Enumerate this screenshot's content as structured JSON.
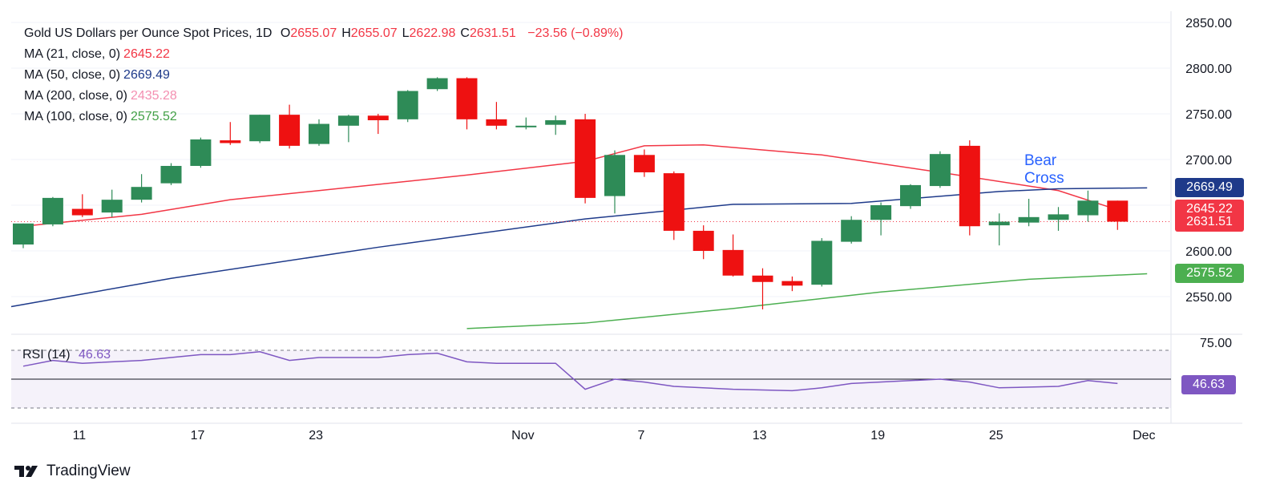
{
  "header": {
    "symbol_text": "Gold US Dollars per Ounce Spot Prices, 1D",
    "ohlc": [
      {
        "key": "O",
        "value": "2655.07"
      },
      {
        "key": "H",
        "value": "2655.07"
      },
      {
        "key": "L",
        "value": "2622.98"
      },
      {
        "key": "C",
        "value": "2631.51"
      }
    ],
    "change": "−23.56 (−0.89%)"
  },
  "indicators": [
    {
      "label": "MA (21, close, 0)",
      "value": "2645.22",
      "color": "#f23645"
    },
    {
      "label": "MA (50, close, 0)",
      "value": "2669.49",
      "color": "#1e3a8a"
    },
    {
      "label": "MA (200, close, 0)",
      "value": "2435.28",
      "color": "#f48fb1"
    },
    {
      "label": "MA (100, close, 0)",
      "value": "2575.52",
      "color": "#43a047"
    }
  ],
  "annotation": {
    "line1": "Bear",
    "line2": "Cross"
  },
  "price_badges": [
    {
      "value": "2669.49",
      "color": "#1e3a8a"
    },
    {
      "value": "2645.22",
      "color": "#f23645"
    },
    {
      "value": "2631.51",
      "color": "#f23645"
    },
    {
      "value": "2575.52",
      "color": "#4caf50"
    }
  ],
  "rsi": {
    "label": "RSI (14)",
    "value": "46.63",
    "badge": "46.63",
    "color": "#7e57c2"
  },
  "footer": {
    "brand": "TradingView"
  },
  "chart_data": {
    "type": "candlestick",
    "y_axis": {
      "ticks": [
        "2850.00",
        "2800.00",
        "2750.00",
        "2700.00",
        "2650.00",
        "2600.00",
        "2550.00"
      ],
      "ylim": [
        2515,
        2860
      ]
    },
    "x_axis": {
      "ticks": [
        "11",
        "17",
        "23",
        "Nov",
        "7",
        "13",
        "19",
        "25",
        "Dec"
      ]
    },
    "rsi_axis": {
      "ticks": [
        "75.00"
      ],
      "ylim": [
        20,
        80
      ],
      "band": [
        30,
        70
      ],
      "mid": 50
    },
    "candles": [
      {
        "o": 2607,
        "h": 2630,
        "l": 2603,
        "c": 2630
      },
      {
        "o": 2629,
        "h": 2659,
        "l": 2627,
        "c": 2658
      },
      {
        "o": 2646,
        "h": 2662,
        "l": 2637,
        "c": 2639
      },
      {
        "o": 2642,
        "h": 2667,
        "l": 2637,
        "c": 2656
      },
      {
        "o": 2656,
        "h": 2684,
        "l": 2653,
        "c": 2670
      },
      {
        "o": 2674,
        "h": 2696,
        "l": 2672,
        "c": 2693
      },
      {
        "o": 2693,
        "h": 2724,
        "l": 2691,
        "c": 2722
      },
      {
        "o": 2721,
        "h": 2741,
        "l": 2716,
        "c": 2718
      },
      {
        "o": 2720,
        "h": 2749,
        "l": 2718,
        "c": 2749
      },
      {
        "o": 2749,
        "h": 2760,
        "l": 2712,
        "c": 2715
      },
      {
        "o": 2717,
        "h": 2744,
        "l": 2715,
        "c": 2739
      },
      {
        "o": 2737,
        "h": 2749,
        "l": 2719,
        "c": 2748
      },
      {
        "o": 2748,
        "h": 2750,
        "l": 2728,
        "c": 2743
      },
      {
        "o": 2744,
        "h": 2776,
        "l": 2741,
        "c": 2775
      },
      {
        "o": 2777,
        "h": 2790,
        "l": 2775,
        "c": 2789
      },
      {
        "o": 2789,
        "h": 2790,
        "l": 2733,
        "c": 2744
      },
      {
        "o": 2744,
        "h": 2763,
        "l": 2733,
        "c": 2737
      },
      {
        "o": 2736,
        "h": 2746,
        "l": 2733,
        "c": 2737
      },
      {
        "o": 2738,
        "h": 2748,
        "l": 2727,
        "c": 2743
      },
      {
        "o": 2744,
        "h": 2750,
        "l": 2652,
        "c": 2658
      },
      {
        "o": 2660,
        "h": 2710,
        "l": 2641,
        "c": 2705
      },
      {
        "o": 2705,
        "h": 2711,
        "l": 2681,
        "c": 2686
      },
      {
        "o": 2685,
        "h": 2687,
        "l": 2612,
        "c": 2622
      },
      {
        "o": 2622,
        "h": 2628,
        "l": 2591,
        "c": 2600
      },
      {
        "o": 2601,
        "h": 2618,
        "l": 2572,
        "c": 2573
      },
      {
        "o": 2573,
        "h": 2581,
        "l": 2536,
        "c": 2566
      },
      {
        "o": 2567,
        "h": 2572,
        "l": 2556,
        "c": 2562
      },
      {
        "o": 2563,
        "h": 2614,
        "l": 2561,
        "c": 2611
      },
      {
        "o": 2610,
        "h": 2638,
        "l": 2608,
        "c": 2634
      },
      {
        "o": 2634,
        "h": 2653,
        "l": 2617,
        "c": 2650
      },
      {
        "o": 2649,
        "h": 2673,
        "l": 2646,
        "c": 2672
      },
      {
        "o": 2671,
        "h": 2709,
        "l": 2669,
        "c": 2706
      },
      {
        "o": 2715,
        "h": 2721,
        "l": 2617,
        "c": 2627
      },
      {
        "o": 2628,
        "h": 2641,
        "l": 2606,
        "c": 2632
      },
      {
        "o": 2631,
        "h": 2657,
        "l": 2627,
        "c": 2637
      },
      {
        "o": 2634,
        "h": 2648,
        "l": 2622,
        "c": 2640
      },
      {
        "o": 2639,
        "h": 2666,
        "l": 2632,
        "c": 2655
      },
      {
        "o": 2655,
        "h": 2655,
        "l": 2623,
        "c": 2632
      }
    ],
    "ma21": [
      [
        0,
        2627
      ],
      [
        4,
        2640
      ],
      [
        7,
        2656
      ],
      [
        10,
        2666
      ],
      [
        15,
        2683
      ],
      [
        19,
        2698
      ],
      [
        21,
        2715
      ],
      [
        23,
        2716
      ],
      [
        27,
        2705
      ],
      [
        31,
        2686
      ],
      [
        35,
        2666
      ],
      [
        37,
        2645
      ]
    ],
    "ma50": [
      [
        -1,
        2539
      ],
      [
        5,
        2570
      ],
      [
        12,
        2604
      ],
      [
        19,
        2635
      ],
      [
        24,
        2651
      ],
      [
        28,
        2652
      ],
      [
        33,
        2665
      ],
      [
        35,
        2668
      ],
      [
        38,
        2669
      ]
    ],
    "ma100": [
      [
        15,
        2515
      ],
      [
        19,
        2521
      ],
      [
        24,
        2537
      ],
      [
        29,
        2555
      ],
      [
        34,
        2569
      ],
      [
        38,
        2575
      ]
    ],
    "rsi_values": [
      [
        0,
        59
      ],
      [
        1,
        63
      ],
      [
        2,
        61
      ],
      [
        4,
        63
      ],
      [
        6,
        67
      ],
      [
        7,
        67
      ],
      [
        8,
        69
      ],
      [
        9,
        63
      ],
      [
        10,
        65
      ],
      [
        12,
        65
      ],
      [
        13,
        67
      ],
      [
        14,
        68
      ],
      [
        15,
        62
      ],
      [
        16,
        61
      ],
      [
        18,
        61
      ],
      [
        19,
        43
      ],
      [
        20,
        50
      ],
      [
        21,
        48
      ],
      [
        22,
        45
      ],
      [
        24,
        43
      ],
      [
        26,
        42
      ],
      [
        27,
        44
      ],
      [
        28,
        47
      ],
      [
        30,
        49
      ],
      [
        31,
        50
      ],
      [
        32,
        48
      ],
      [
        33,
        44
      ],
      [
        35,
        45
      ],
      [
        36,
        49
      ],
      [
        37,
        47
      ]
    ]
  }
}
